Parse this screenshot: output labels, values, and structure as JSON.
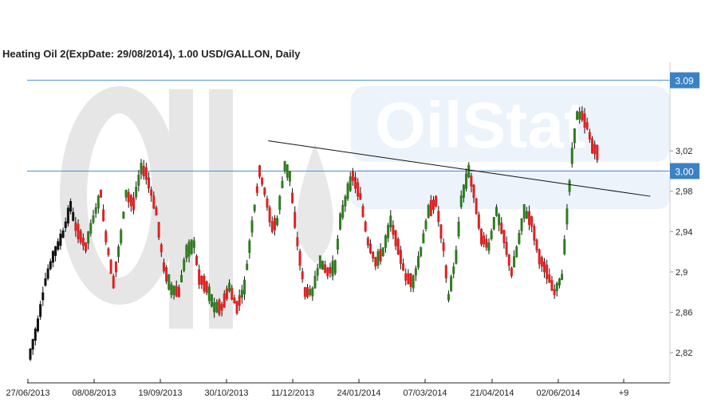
{
  "chart_data": {
    "type": "candlestick",
    "title": "Heating Oil 2(ExpDate: 29/08/2014), 1.00 USD/GALLON, Daily",
    "watermark": "OilStat",
    "ylim": [
      2.79,
      3.1
    ],
    "y_ticks": [
      "2,82",
      "2,86",
      "2,9",
      "2,94",
      "2,98",
      "3,02"
    ],
    "x_ticks": [
      "27/06/2013",
      "08/08/2013",
      "19/09/2013",
      "30/10/2013",
      "11/12/2013",
      "24/01/2014",
      "07/03/2014",
      "21/04/2014",
      "02/06/2014",
      "+9"
    ],
    "colors": {
      "up": "#2e7d1f",
      "down": "#dd2222",
      "neutral": "#111111",
      "hline": "#4a8fd0",
      "badge": "#3a82c4",
      "trendline": "#111111",
      "axis": "#222222"
    },
    "horizontal_lines": [
      {
        "value": 3.09,
        "label": "3.09"
      },
      {
        "value": 3.0,
        "label": "3.00"
      }
    ],
    "trendline": {
      "from": {
        "x": "2013-11-28",
        "y": 3.03
      },
      "to": {
        "x": "2014-07-31",
        "y": 2.975
      }
    },
    "ohlc_keypoints": [
      [
        0,
        2.822,
        2.815
      ],
      [
        3,
        2.84,
        2.855
      ],
      [
        6,
        2.88,
        2.9
      ],
      [
        9,
        2.9,
        2.93
      ],
      [
        13,
        2.925,
        2.95
      ],
      [
        16,
        2.96,
        2.97
      ],
      [
        18,
        2.95,
        2.94
      ],
      [
        22,
        2.93,
        2.92
      ],
      [
        25,
        2.94,
        2.965
      ],
      [
        28,
        2.975,
        2.98
      ],
      [
        30,
        2.96,
        2.91
      ],
      [
        33,
        2.92,
        2.86
      ],
      [
        36,
        2.9,
        2.97
      ],
      [
        38,
        2.975,
        2.98
      ],
      [
        41,
        2.975,
        2.96
      ],
      [
        44,
        2.99,
        3.015
      ],
      [
        46,
        3.01,
        2.985
      ],
      [
        50,
        2.98,
        2.94
      ],
      [
        53,
        2.93,
        2.88
      ],
      [
        56,
        2.87,
        2.895
      ],
      [
        59,
        2.89,
        2.87
      ],
      [
        62,
        2.9,
        2.94
      ],
      [
        65,
        2.92,
        2.935
      ],
      [
        67,
        2.92,
        2.87
      ],
      [
        70,
        2.89,
        2.88
      ],
      [
        73,
        2.86,
        2.87
      ],
      [
        76,
        2.87,
        2.86
      ],
      [
        79,
        2.88,
        2.89
      ],
      [
        82,
        2.88,
        2.85
      ],
      [
        85,
        2.87,
        2.9
      ],
      [
        88,
        2.92,
        2.97
      ],
      [
        91,
        3.01,
        2.99
      ],
      [
        93,
        2.99,
        2.97
      ],
      [
        96,
        2.97,
        2.92
      ],
      [
        98,
        2.93,
        2.97
      ],
      [
        101,
        2.99,
        3.02
      ],
      [
        103,
        2.99,
        3.0
      ],
      [
        106,
        2.98,
        2.88
      ],
      [
        109,
        2.89,
        2.87
      ],
      [
        112,
        2.87,
        2.89
      ],
      [
        115,
        2.9,
        2.92
      ],
      [
        118,
        2.91,
        2.89
      ],
      [
        121,
        2.89,
        2.92
      ],
      [
        123,
        2.94,
        2.96
      ],
      [
        126,
        2.96,
        3.0
      ],
      [
        128,
        3.0,
        2.99
      ],
      [
        131,
        2.98,
        2.97
      ],
      [
        134,
        2.95,
        2.91
      ],
      [
        137,
        2.92,
        2.9
      ],
      [
        140,
        2.91,
        2.93
      ],
      [
        143,
        2.95,
        2.95
      ],
      [
        146,
        2.95,
        2.9
      ],
      [
        149,
        2.91,
        2.88
      ],
      [
        152,
        2.88,
        2.9
      ],
      [
        155,
        2.91,
        2.93
      ],
      [
        158,
        2.95,
        2.97
      ],
      [
        161,
        2.98,
        2.96
      ],
      [
        164,
        2.97,
        2.88
      ],
      [
        166,
        2.87,
        2.88
      ],
      [
        169,
        2.89,
        2.94
      ],
      [
        171,
        2.96,
        2.98
      ],
      [
        174,
        2.99,
        3.01
      ],
      [
        176,
        3.0,
        2.96
      ],
      [
        179,
        2.97,
        2.9
      ],
      [
        182,
        2.91,
        2.94
      ],
      [
        185,
        2.95,
        2.97
      ],
      [
        188,
        2.96,
        2.91
      ],
      [
        191,
        2.9,
        2.9
      ],
      [
        193,
        2.91,
        2.93
      ],
      [
        196,
        2.95,
        2.97
      ],
      [
        199,
        2.96,
        2.94
      ],
      [
        202,
        2.93,
        2.9
      ],
      [
        205,
        2.91,
        2.89
      ],
      [
        208,
        2.89,
        2.87
      ],
      [
        211,
        2.88,
        2.91
      ],
      [
        213,
        2.92,
        2.99
      ],
      [
        215,
        3.0,
        3.03
      ],
      [
        217,
        3.04,
        3.07
      ],
      [
        219,
        3.06,
        3.05
      ],
      [
        221,
        3.05,
        3.04
      ],
      [
        223,
        3.03,
        3.02
      ],
      [
        226,
        3.02,
        3.01
      ]
    ]
  }
}
